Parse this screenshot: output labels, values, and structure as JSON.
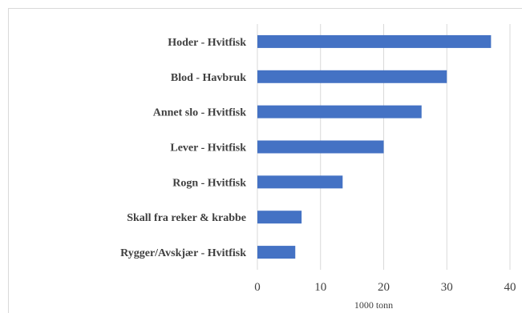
{
  "chart_data": {
    "type": "bar",
    "orientation": "horizontal",
    "categories": [
      "Hoder - Hvitfisk",
      "Blod - Havbruk",
      "Annet slo - Hvitfisk",
      "Lever - Hvitfisk",
      "Rogn - Hvitfisk",
      "Skall fra reker & krabbe",
      "Rygger/Avskjær - Hvitfisk"
    ],
    "values": [
      37,
      30,
      26,
      20,
      13.5,
      7,
      6
    ],
    "xlabel": "1000 tonn",
    "xlim": [
      0,
      40
    ],
    "xticks": [
      0,
      10,
      20,
      30,
      40
    ],
    "grid": "vertical",
    "bar_color": "#4472c4"
  }
}
